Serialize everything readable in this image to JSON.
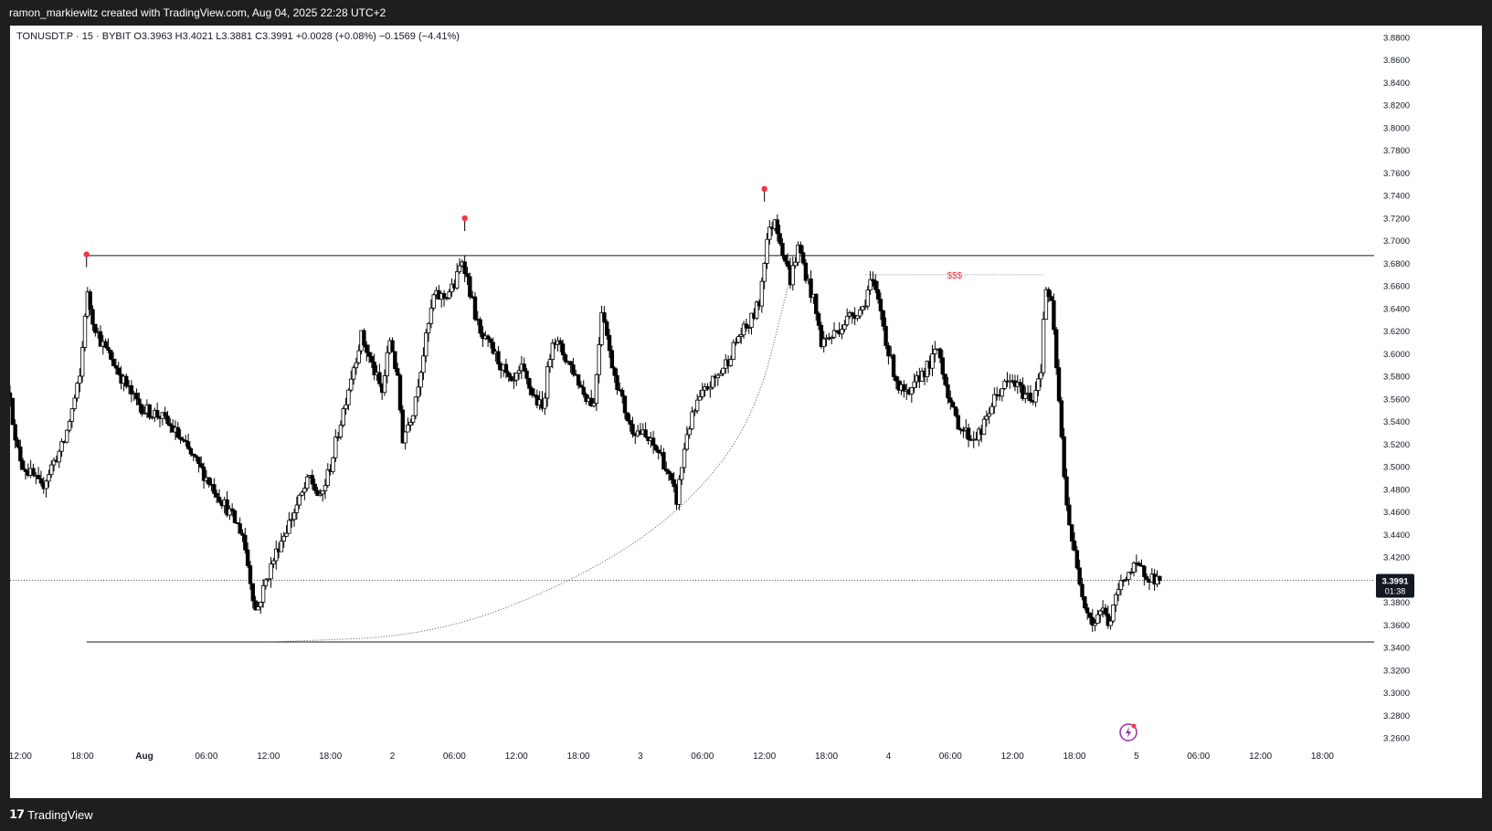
{
  "header": {
    "credit": "ramon_markiewitz created with TradingView.com, Aug 04, 2025 22:28 UTC+2"
  },
  "legend": {
    "text": "TONUSDT.P · 15 · BYBIT  O3.3963  H3.4021  L3.3881  C3.3991  +0.0028 (+0.08%)  −0.1569 (−4.41%)"
  },
  "footer": {
    "brand": "TradingView"
  },
  "chart_data": {
    "type": "candlestick",
    "symbol": "TONUSDT.P",
    "interval": "15",
    "exchange": "BYBIT",
    "ohlc_last": {
      "open": 3.3963,
      "high": 3.4021,
      "low": 3.3881,
      "close": 3.3991
    },
    "ylim": [
      3.25,
      3.89
    ],
    "y_ticks": [
      "3.8800",
      "3.8600",
      "3.8400",
      "3.8200",
      "3.8000",
      "3.7800",
      "3.7600",
      "3.7400",
      "3.7200",
      "3.7000",
      "3.6800",
      "3.6600",
      "3.6400",
      "3.6200",
      "3.6000",
      "3.5800",
      "3.5600",
      "3.5400",
      "3.5200",
      "3.5000",
      "3.4800",
      "3.4600",
      "3.4400",
      "3.4200",
      "3.4000",
      "3.3800",
      "3.3600",
      "3.3400",
      "3.3200",
      "3.3000",
      "3.2800",
      "3.2600"
    ],
    "x_ticks": [
      "12:00",
      "18:00",
      "Aug",
      "06:00",
      "12:00",
      "18:00",
      "2",
      "06:00",
      "12:00",
      "18:00",
      "3",
      "06:00",
      "12:00",
      "18:00",
      "4",
      "06:00",
      "12:00",
      "18:00",
      "5",
      "06:00",
      "12:00",
      "18:00"
    ],
    "x_tick_hours": [
      12,
      18,
      24,
      30,
      36,
      42,
      48,
      54,
      60,
      66,
      72,
      78,
      84,
      90,
      96,
      102,
      108,
      114,
      120,
      126,
      132,
      138
    ],
    "x_range_hours": [
      11,
      143
    ],
    "last_price_label": "3.3991",
    "countdown_label": "01:38",
    "price_path": [
      [
        11.0,
        3.565
      ],
      [
        11.5,
        3.52
      ],
      [
        12.3,
        3.5
      ],
      [
        13.3,
        3.49
      ],
      [
        14.0,
        3.48
      ],
      [
        15.0,
        3.5
      ],
      [
        16.2,
        3.52
      ],
      [
        17.0,
        3.55
      ],
      [
        17.8,
        3.58
      ],
      [
        18.4,
        3.655
      ],
      [
        19.0,
        3.63
      ],
      [
        19.8,
        3.61
      ],
      [
        20.8,
        3.595
      ],
      [
        22.0,
        3.575
      ],
      [
        23.0,
        3.56
      ],
      [
        24.0,
        3.55
      ],
      [
        25.5,
        3.545
      ],
      [
        27.0,
        3.53
      ],
      [
        28.5,
        3.51
      ],
      [
        30.0,
        3.49
      ],
      [
        31.5,
        3.47
      ],
      [
        33.5,
        3.44
      ],
      [
        34.8,
        3.37
      ],
      [
        35.8,
        3.4
      ],
      [
        37.0,
        3.43
      ],
      [
        38.0,
        3.45
      ],
      [
        39.0,
        3.47
      ],
      [
        40.0,
        3.49
      ],
      [
        41.0,
        3.47
      ],
      [
        42.0,
        3.5
      ],
      [
        43.0,
        3.54
      ],
      [
        44.0,
        3.58
      ],
      [
        45.0,
        3.615
      ],
      [
        46.0,
        3.59
      ],
      [
        47.0,
        3.565
      ],
      [
        47.8,
        3.615
      ],
      [
        48.5,
        3.575
      ],
      [
        49.0,
        3.525
      ],
      [
        50.0,
        3.55
      ],
      [
        51.0,
        3.6
      ],
      [
        52.0,
        3.65
      ],
      [
        53.0,
        3.65
      ],
      [
        54.0,
        3.66
      ],
      [
        54.8,
        3.685
      ],
      [
        55.5,
        3.655
      ],
      [
        56.5,
        3.615
      ],
      [
        57.5,
        3.605
      ],
      [
        58.5,
        3.59
      ],
      [
        59.5,
        3.57
      ],
      [
        60.5,
        3.585
      ],
      [
        61.5,
        3.565
      ],
      [
        62.5,
        3.55
      ],
      [
        63.5,
        3.615
      ],
      [
        64.5,
        3.6
      ],
      [
        65.5,
        3.585
      ],
      [
        66.5,
        3.565
      ],
      [
        67.5,
        3.555
      ],
      [
        68.3,
        3.645
      ],
      [
        69.0,
        3.6
      ],
      [
        70.0,
        3.565
      ],
      [
        71.0,
        3.535
      ],
      [
        72.0,
        3.53
      ],
      [
        73.0,
        3.52
      ],
      [
        74.0,
        3.51
      ],
      [
        75.5,
        3.47
      ],
      [
        76.5,
        3.53
      ],
      [
        77.5,
        3.555
      ],
      [
        78.5,
        3.57
      ],
      [
        79.5,
        3.58
      ],
      [
        80.5,
        3.595
      ],
      [
        81.5,
        3.615
      ],
      [
        82.5,
        3.625
      ],
      [
        83.5,
        3.645
      ],
      [
        84.2,
        3.7
      ],
      [
        85.0,
        3.72
      ],
      [
        85.8,
        3.69
      ],
      [
        86.5,
        3.665
      ],
      [
        87.3,
        3.695
      ],
      [
        88.0,
        3.67
      ],
      [
        88.8,
        3.645
      ],
      [
        89.5,
        3.61
      ],
      [
        90.5,
        3.615
      ],
      [
        91.5,
        3.625
      ],
      [
        92.5,
        3.635
      ],
      [
        93.5,
        3.64
      ],
      [
        94.3,
        3.665
      ],
      [
        95.2,
        3.64
      ],
      [
        96.0,
        3.6
      ],
      [
        97.0,
        3.57
      ],
      [
        98.0,
        3.56
      ],
      [
        99.0,
        3.58
      ],
      [
        100.0,
        3.59
      ],
      [
        100.8,
        3.605
      ],
      [
        101.5,
        3.575
      ],
      [
        102.3,
        3.545
      ],
      [
        103.0,
        3.535
      ],
      [
        104.0,
        3.525
      ],
      [
        105.0,
        3.53
      ],
      [
        106.0,
        3.555
      ],
      [
        107.0,
        3.57
      ],
      [
        108.0,
        3.575
      ],
      [
        109.0,
        3.565
      ],
      [
        110.0,
        3.56
      ],
      [
        110.8,
        3.59
      ],
      [
        111.2,
        3.66
      ],
      [
        111.8,
        3.64
      ],
      [
        112.4,
        3.57
      ],
      [
        113.0,
        3.49
      ],
      [
        113.5,
        3.45
      ],
      [
        114.2,
        3.41
      ],
      [
        115.0,
        3.38
      ],
      [
        115.8,
        3.36
      ],
      [
        116.6,
        3.375
      ],
      [
        117.4,
        3.36
      ],
      [
        118.2,
        3.39
      ],
      [
        119.0,
        3.405
      ],
      [
        120.0,
        3.41
      ],
      [
        121.0,
        3.405
      ],
      [
        121.8,
        3.4
      ],
      [
        122.4,
        3.3991
      ]
    ],
    "swing_high_markers": [
      {
        "x": 18.4,
        "y": 3.6875
      },
      {
        "x": 55.0,
        "y": 3.7195
      },
      {
        "x": 84.0,
        "y": 3.7455
      }
    ],
    "horizontal_lines": [
      {
        "y": 3.6865,
        "x_from": 18.4,
        "x_to": 143,
        "style": "solid"
      },
      {
        "y": 3.3445,
        "x_from": 18.4,
        "x_to": 143,
        "style": "solid"
      },
      {
        "y": 3.3991,
        "x_from": 11,
        "x_to": 143,
        "style": "dotted"
      }
    ],
    "liquidity_line": {
      "y": 3.6695,
      "x_from": 93.8,
      "x_to": 111.0,
      "label": "$$$"
    },
    "curve_points": [
      [
        36.0,
        3.3445
      ],
      [
        52.0,
        3.35
      ],
      [
        66.0,
        3.4
      ],
      [
        76.0,
        3.46
      ],
      [
        83.0,
        3.54
      ],
      [
        86.3,
        3.66
      ]
    ],
    "colors": {
      "candle": "#000000",
      "marker": "#f23645",
      "liquidity_label": "#f23645",
      "line": "#131722",
      "price_label_bg": "#131722"
    }
  }
}
